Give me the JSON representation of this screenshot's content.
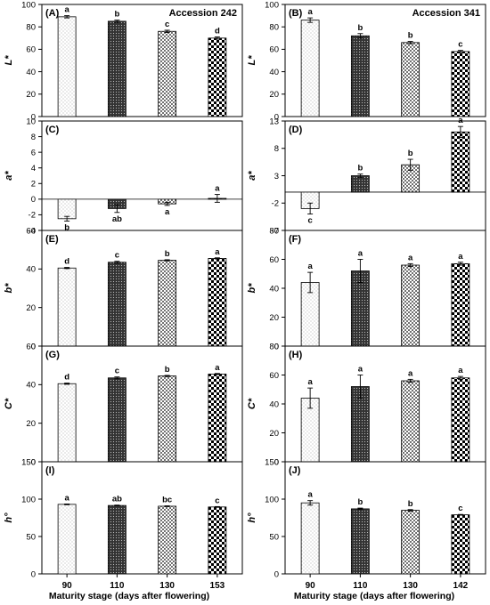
{
  "figure": {
    "xlabel": "Maturity stage (days after flowering)",
    "pattern_colors": {
      "stage1": "#9a9a9a",
      "stage2": "#333333",
      "stage3": "#555555",
      "stage4": "#000000"
    }
  },
  "chart_data": [
    {
      "type": "bar",
      "panel": "(A)",
      "title": "Accession 242",
      "ylabel": "L*",
      "categories": [
        "90",
        "110",
        "130",
        "153"
      ],
      "values": [
        89,
        85,
        76,
        70
      ],
      "errors": [
        1,
        1,
        1,
        1
      ],
      "letters": [
        "a",
        "b",
        "c",
        "d"
      ],
      "ylim": [
        0,
        100
      ],
      "yticks": [
        "0",
        "20",
        "40",
        "60",
        "80",
        "100"
      ],
      "column": 0,
      "row": 0,
      "show_xticks": false
    },
    {
      "type": "bar",
      "panel": "(B)",
      "title": "Accession 341",
      "ylabel": "L*",
      "categories": [
        "90",
        "110",
        "130",
        "142"
      ],
      "values": [
        86,
        72,
        66,
        58
      ],
      "errors": [
        2,
        2,
        1,
        1
      ],
      "letters": [
        "a",
        "b",
        "b",
        "c"
      ],
      "ylim": [
        0,
        100
      ],
      "yticks": [
        "0",
        "20",
        "40",
        "60",
        "80",
        "100"
      ],
      "column": 1,
      "row": 0,
      "show_xticks": false
    },
    {
      "type": "bar",
      "panel": "(C)",
      "title": "",
      "ylabel": "a*",
      "categories": [
        "90",
        "110",
        "130",
        "153"
      ],
      "values": [
        -2.5,
        -1.2,
        -0.6,
        0.1
      ],
      "errors": [
        0.3,
        0.5,
        0.2,
        0.5
      ],
      "letters": [
        "b",
        "ab",
        "a",
        "a"
      ],
      "ylim": [
        -4,
        10
      ],
      "yticks": [
        "-4",
        "-2",
        "0",
        "2",
        "4",
        "6",
        "8",
        "10"
      ],
      "column": 0,
      "row": 1,
      "show_xticks": false
    },
    {
      "type": "bar",
      "panel": "(D)",
      "title": "",
      "ylabel": "a*",
      "categories": [
        "90",
        "110",
        "130",
        "142"
      ],
      "values": [
        -3,
        3,
        5,
        11
      ],
      "errors": [
        1,
        0.3,
        1,
        1
      ],
      "letters": [
        "c",
        "b",
        "b",
        "a"
      ],
      "ylim": [
        -7,
        13
      ],
      "yticks": [
        "-7",
        "-2",
        "3",
        "8",
        "13"
      ],
      "column": 1,
      "row": 1,
      "show_xticks": false
    },
    {
      "type": "bar",
      "panel": "(E)",
      "title": "",
      "ylabel": "b*",
      "categories": [
        "90",
        "110",
        "130",
        "153"
      ],
      "values": [
        40.5,
        43.5,
        44.5,
        45.5
      ],
      "errors": [
        0.3,
        0.5,
        0.3,
        0.3
      ],
      "letters": [
        "d",
        "c",
        "b",
        "a"
      ],
      "ylim": [
        0,
        60
      ],
      "yticks": [
        "0",
        "20",
        "40",
        "60"
      ],
      "column": 0,
      "row": 2,
      "show_xticks": false
    },
    {
      "type": "bar",
      "panel": "(F)",
      "title": "",
      "ylabel": "b*",
      "categories": [
        "90",
        "110",
        "130",
        "142"
      ],
      "values": [
        44,
        52,
        56,
        57
      ],
      "errors": [
        7,
        8,
        1,
        1
      ],
      "letters": [
        "a",
        "a",
        "a",
        "a"
      ],
      "ylim": [
        0,
        80
      ],
      "yticks": [
        "0",
        "20",
        "40",
        "60",
        "80"
      ],
      "column": 1,
      "row": 2,
      "show_xticks": false
    },
    {
      "type": "bar",
      "panel": "(G)",
      "title": "",
      "ylabel": "C*",
      "categories": [
        "90",
        "110",
        "130",
        "153"
      ],
      "values": [
        40.5,
        43.5,
        44.5,
        45.5
      ],
      "errors": [
        0.3,
        0.5,
        0.3,
        0.3
      ],
      "letters": [
        "d",
        "c",
        "b",
        "a"
      ],
      "ylim": [
        0,
        60
      ],
      "yticks": [
        "0",
        "20",
        "40",
        "60"
      ],
      "column": 0,
      "row": 3,
      "show_xticks": false
    },
    {
      "type": "bar",
      "panel": "(H)",
      "title": "",
      "ylabel": "C*",
      "categories": [
        "90",
        "110",
        "130",
        "142"
      ],
      "values": [
        44,
        52,
        56,
        58
      ],
      "errors": [
        7,
        8,
        1,
        1
      ],
      "letters": [
        "a",
        "a",
        "a",
        "a"
      ],
      "ylim": [
        0,
        80
      ],
      "yticks": [
        "0",
        "20",
        "40",
        "60",
        "80"
      ],
      "column": 1,
      "row": 3,
      "show_xticks": false
    },
    {
      "type": "bar",
      "panel": "(I)",
      "title": "",
      "ylabel": "h°",
      "categories": [
        "90",
        "110",
        "130",
        "153"
      ],
      "values": [
        93,
        91.5,
        90.5,
        89.5
      ],
      "errors": [
        0.5,
        0.5,
        0.5,
        0.5
      ],
      "letters": [
        "a",
        "ab",
        "bc",
        "c"
      ],
      "ylim": [
        0,
        150
      ],
      "yticks": [
        "0",
        "50",
        "100",
        "150"
      ],
      "column": 0,
      "row": 4,
      "show_xticks": true
    },
    {
      "type": "bar",
      "panel": "(J)",
      "title": "",
      "ylabel": "h°",
      "categories": [
        "90",
        "110",
        "130",
        "142"
      ],
      "values": [
        95,
        87,
        85,
        79
      ],
      "errors": [
        3,
        1,
        1,
        0.5
      ],
      "letters": [
        "a",
        "b",
        "b",
        "c"
      ],
      "ylim": [
        0,
        150
      ],
      "yticks": [
        "0",
        "50",
        "100",
        "150"
      ],
      "column": 1,
      "row": 4,
      "show_xticks": true
    }
  ]
}
